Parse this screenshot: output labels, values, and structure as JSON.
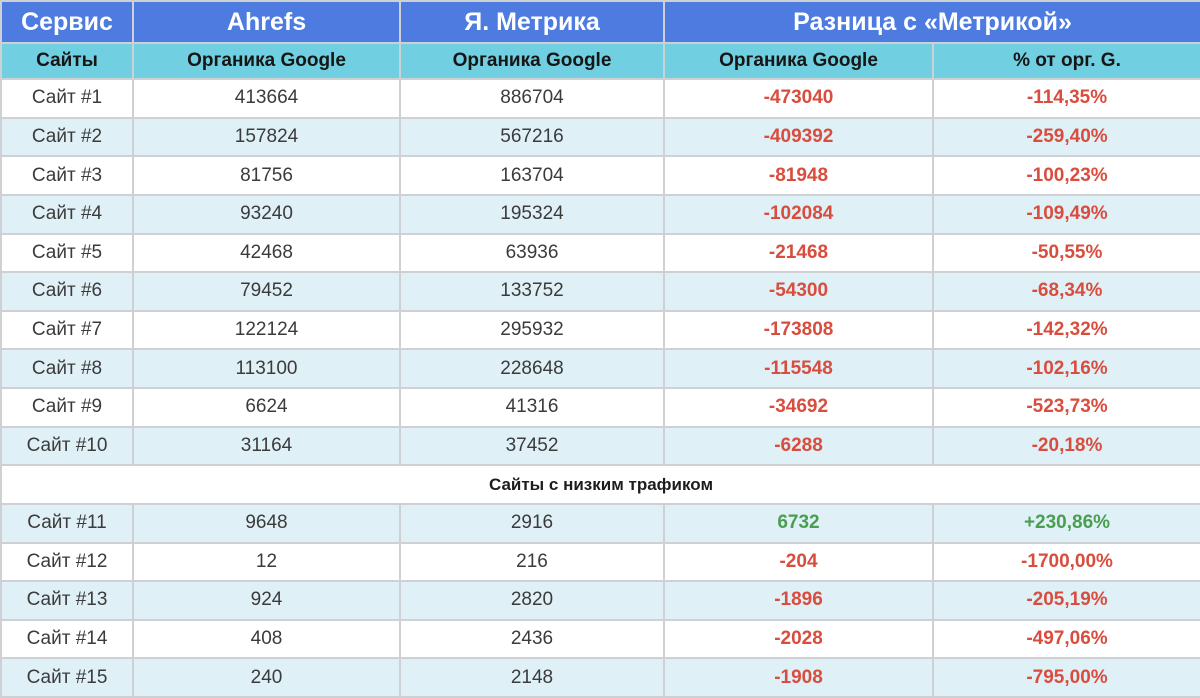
{
  "accent_colors": {
    "header_blue": "#4D7BE0",
    "subheader_teal": "#70CFE0",
    "row_alt_blue": "#DFF0F7",
    "border_gray": "#CDD1D3",
    "negative_red": "#D94D3E",
    "positive_green": "#4A9E50"
  },
  "chart_data": {
    "type": "table",
    "header_row_1": {
      "service": "Сервис",
      "ahrefs": "Ahrefs",
      "metrika": "Я. Метрика",
      "diff_group": "Разница с «Метрикой»"
    },
    "header_row_2": {
      "sites": "Сайты",
      "ahrefs_organic": "Органика Google",
      "metrika_organic": "Органика Google",
      "diff_organic": "Органика Google",
      "diff_pct": "% от орг. G."
    },
    "separator": {
      "label": "Сайты с низким трафиком",
      "after_index": 10
    },
    "rows": [
      {
        "site": "Сайт #1",
        "ahrefs": "413664",
        "metrika": "886704",
        "diff": "-473040",
        "pct": "-114,35%",
        "trend": "negative"
      },
      {
        "site": "Сайт #2",
        "ahrefs": "157824",
        "metrika": "567216",
        "diff": "-409392",
        "pct": "-259,40%",
        "trend": "negative"
      },
      {
        "site": "Сайт #3",
        "ahrefs": "81756",
        "metrika": "163704",
        "diff": "-81948",
        "pct": "-100,23%",
        "trend": "negative"
      },
      {
        "site": "Сайт #4",
        "ahrefs": "93240",
        "metrika": "195324",
        "diff": "-102084",
        "pct": "-109,49%",
        "trend": "negative"
      },
      {
        "site": "Сайт #5",
        "ahrefs": "42468",
        "metrika": "63936",
        "diff": "-21468",
        "pct": "-50,55%",
        "trend": "negative"
      },
      {
        "site": "Сайт #6",
        "ahrefs": "79452",
        "metrika": "133752",
        "diff": "-54300",
        "pct": "-68,34%",
        "trend": "negative"
      },
      {
        "site": "Сайт #7",
        "ahrefs": "122124",
        "metrika": "295932",
        "diff": "-173808",
        "pct": "-142,32%",
        "trend": "negative"
      },
      {
        "site": "Сайт #8",
        "ahrefs": "113100",
        "metrika": "228648",
        "diff": "-115548",
        "pct": "-102,16%",
        "trend": "negative"
      },
      {
        "site": "Сайт #9",
        "ahrefs": "6624",
        "metrika": "41316",
        "diff": "-34692",
        "pct": "-523,73%",
        "trend": "negative"
      },
      {
        "site": "Сайт #10",
        "ahrefs": "31164",
        "metrika": "37452",
        "diff": "-6288",
        "pct": "-20,18%",
        "trend": "negative"
      },
      {
        "site": "Сайт #11",
        "ahrefs": "9648",
        "metrika": "2916",
        "diff": "6732",
        "pct": "+230,86%",
        "trend": "positive"
      },
      {
        "site": "Сайт #12",
        "ahrefs": "12",
        "metrika": "216",
        "diff": "-204",
        "pct": "-1700,00%",
        "trend": "negative"
      },
      {
        "site": "Сайт #13",
        "ahrefs": "924",
        "metrika": "2820",
        "diff": "-1896",
        "pct": "-205,19%",
        "trend": "negative"
      },
      {
        "site": "Сайт #14",
        "ahrefs": "408",
        "metrika": "2436",
        "diff": "-2028",
        "pct": "-497,06%",
        "trend": "negative"
      },
      {
        "site": "Сайт #15",
        "ahrefs": "240",
        "metrika": "2148",
        "diff": "-1908",
        "pct": "-795,00%",
        "trend": "negative"
      }
    ]
  }
}
